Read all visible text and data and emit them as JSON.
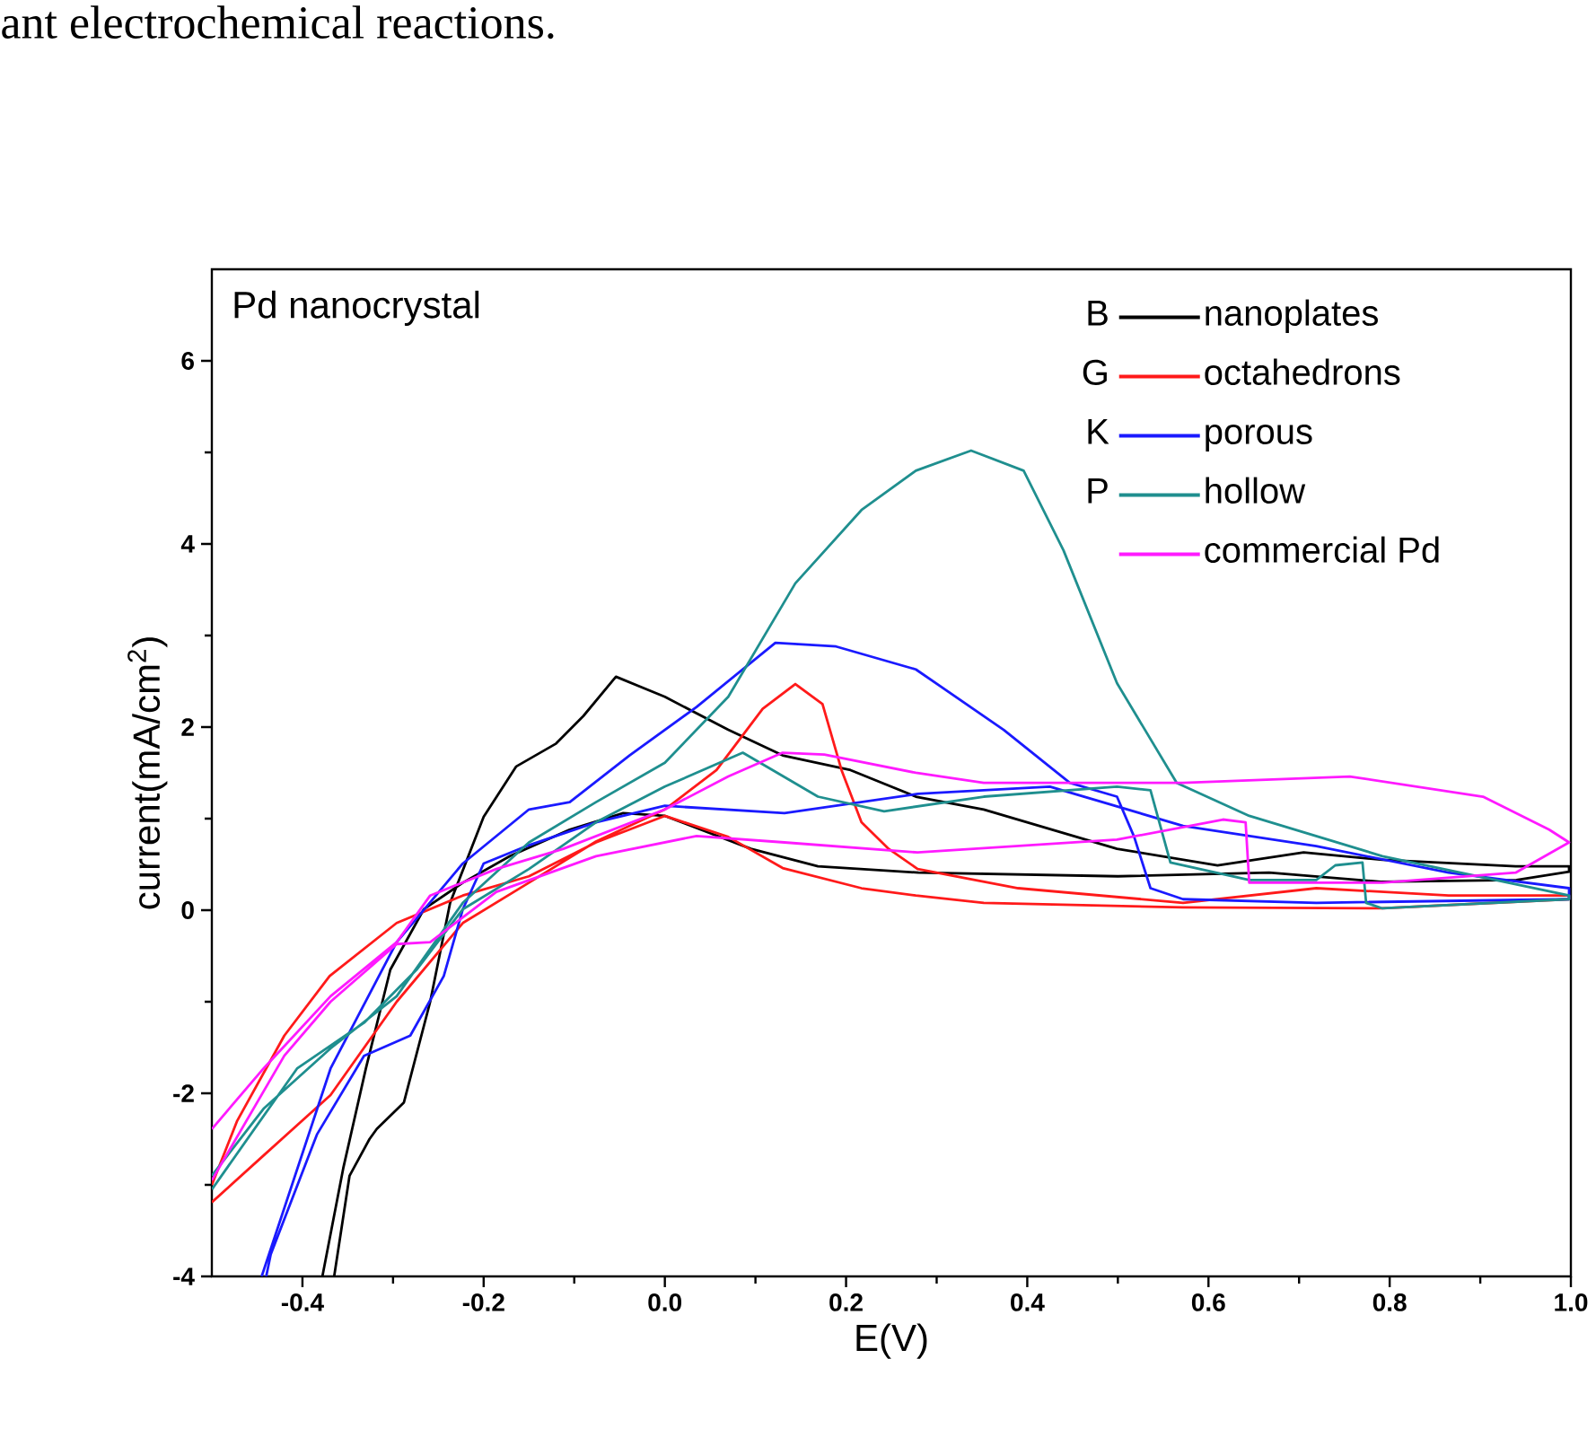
{
  "chart_data": {
    "type": "line",
    "title": "Pd nanocrystal",
    "xlabel": "E(V)",
    "ylabel": "current(mA/cm$^{2}$)",
    "annotations": [
      "B",
      "G",
      "K",
      "P",
      "ant electrochemical reactions."
    ],
    "xlim": [
      -0.5,
      1.0
    ],
    "ylim": [
      -4,
      7
    ],
    "xticks": [
      -0.4,
      -0.2,
      {
        "value": 0,
        "label": "0.0"
      },
      0.2,
      0.4,
      0.6,
      0.8,
      {
        "value": 1,
        "label": "1.0"
      }
    ],
    "yticks": [
      -4,
      -2,
      0,
      2,
      4,
      6
    ],
    "legend": "top right",
    "grid": false,
    "marker": "none",
    "line_style": "solid",
    "series": [
      {
        "name": "nanoplates",
        "color": "#000000",
        "x": [
          -0.365,
          -0.348,
          -0.326,
          -0.318,
          -0.288,
          -0.259,
          -0.237,
          -0.2,
          -0.164,
          -0.12,
          -0.09,
          -0.054,
          0.0,
          0.07,
          0.13,
          0.205,
          0.277,
          0.352,
          0.499,
          0.61,
          0.705,
          0.792,
          0.939,
          0.998,
          0.998,
          0.94,
          0.79,
          0.667,
          0.5,
          0.28,
          0.169,
          0.095,
          0.0,
          -0.046,
          -0.105,
          -0.171,
          -0.223,
          -0.266,
          -0.303,
          -0.33,
          -0.355,
          -0.378
        ],
        "values": [
          -4,
          -2.9,
          -2.5,
          -2.39,
          -2.1,
          -1.0,
          0.08,
          1.02,
          1.57,
          1.82,
          2.12,
          2.55,
          2.33,
          1.97,
          1.69,
          1.53,
          1.24,
          1.1,
          0.67,
          0.49,
          0.63,
          0.55,
          0.48,
          0.48,
          0.42,
          0.33,
          0.31,
          0.41,
          0.37,
          0.41,
          0.48,
          0.67,
          1.03,
          1.06,
          0.88,
          0.59,
          0.3,
          0.01,
          -0.65,
          -1.73,
          -2.82,
          -4
        ]
      },
      {
        "name": "octahedrons",
        "color": "#ff1a1a",
        "x": [
          -0.5,
          -0.443,
          -0.369,
          -0.296,
          -0.223,
          -0.15,
          -0.076,
          0.0,
          0.057,
          0.108,
          0.144,
          0.174,
          0.195,
          0.217,
          0.247,
          0.279,
          0.39,
          0.572,
          0.719,
          0.865,
          0.998,
          0.998,
          0.792,
          0.572,
          0.352,
          0.277,
          0.217,
          0.13,
          0.07,
          0.0,
          -0.076,
          -0.15,
          -0.223,
          -0.296,
          -0.37,
          -0.42,
          -0.472,
          -0.5
        ],
        "values": [
          -3.19,
          -2.68,
          -2.02,
          -1.0,
          -0.14,
          0.3,
          0.75,
          1.1,
          1.53,
          2.2,
          2.47,
          2.25,
          1.53,
          0.96,
          0.67,
          0.45,
          0.24,
          0.08,
          0.24,
          0.16,
          0.16,
          0.12,
          0.02,
          0.03,
          0.08,
          0.16,
          0.24,
          0.46,
          0.8,
          1.03,
          0.74,
          0.37,
          0.16,
          -0.14,
          -0.72,
          -1.37,
          -2.3,
          -3.0
        ]
      },
      {
        "name": "porous",
        "color": "#1a1aff",
        "x": [
          -0.445,
          -0.369,
          -0.296,
          -0.223,
          -0.15,
          -0.105,
          -0.039,
          0.035,
          0.122,
          0.189,
          0.277,
          0.374,
          0.447,
          0.499,
          0.518,
          0.536,
          0.572,
          0.719,
          0.998,
          0.998,
          0.865,
          0.719,
          0.572,
          0.425,
          0.279,
          0.132,
          0.0,
          -0.076,
          -0.15,
          -0.2,
          -0.223,
          -0.244,
          -0.281,
          -0.332,
          -0.384,
          -0.435,
          -0.44
        ],
        "values": [
          -4,
          -1.73,
          -0.35,
          0.51,
          1.1,
          1.18,
          1.69,
          2.22,
          2.92,
          2.88,
          2.63,
          1.97,
          1.39,
          1.24,
          0.8,
          0.24,
          0.12,
          0.08,
          0.12,
          0.24,
          0.41,
          0.7,
          0.92,
          1.35,
          1.27,
          1.06,
          1.14,
          0.96,
          0.71,
          0.51,
          0.01,
          -0.72,
          -1.37,
          -1.59,
          -2.45,
          -3.76,
          -4
        ]
      },
      {
        "name": "hollow",
        "color": "#1f8f8f",
        "x": [
          -0.5,
          -0.443,
          -0.369,
          -0.296,
          -0.223,
          -0.15,
          -0.076,
          0.0,
          0.07,
          0.144,
          0.217,
          0.277,
          0.338,
          0.396,
          0.44,
          0.499,
          0.565,
          0.645,
          0.792,
          0.998,
          0.998,
          0.792,
          0.774,
          0.77,
          0.74,
          0.719,
          0.645,
          0.558,
          0.536,
          0.499,
          0.352,
          0.242,
          0.169,
          0.086,
          0.0,
          -0.076,
          -0.15,
          -0.223,
          -0.274,
          -0.332,
          -0.406,
          -0.5
        ],
        "values": [
          -2.9,
          -2.17,
          -1.51,
          -0.94,
          0.08,
          0.74,
          1.18,
          1.61,
          2.33,
          3.57,
          4.37,
          4.8,
          5.02,
          4.8,
          3.93,
          2.48,
          1.39,
          1.03,
          0.59,
          0.16,
          0.12,
          0.02,
          0.08,
          0.52,
          0.49,
          0.33,
          0.33,
          0.52,
          1.31,
          1.35,
          1.24,
          1.08,
          1.24,
          1.72,
          1.35,
          0.96,
          0.45,
          0.01,
          -0.65,
          -1.23,
          -1.73,
          -3.05
        ]
      },
      {
        "name": "commercial Pd",
        "color": "#ff1aff",
        "x": [
          -0.5,
          -0.443,
          -0.369,
          -0.296,
          -0.259,
          -0.186,
          -0.112,
          0.0,
          0.07,
          0.13,
          0.176,
          0.277,
          0.352,
          0.572,
          0.756,
          0.903,
          0.976,
          0.998,
          0.939,
          0.792,
          0.645,
          0.641,
          0.616,
          0.499,
          0.279,
          0.132,
          0.035,
          -0.076,
          -0.186,
          -0.259,
          -0.296,
          -0.369,
          -0.42,
          -0.5
        ],
        "values": [
          -2.39,
          -1.73,
          -0.94,
          -0.35,
          0.16,
          0.45,
          0.67,
          1.1,
          1.46,
          1.72,
          1.7,
          1.5,
          1.39,
          1.39,
          1.46,
          1.24,
          0.88,
          0.74,
          0.41,
          0.3,
          0.3,
          0.96,
          0.99,
          0.77,
          0.63,
          0.74,
          0.81,
          0.59,
          0.2,
          -0.35,
          -0.37,
          -1.0,
          -1.59,
          -2.95
        ]
      }
    ]
  }
}
